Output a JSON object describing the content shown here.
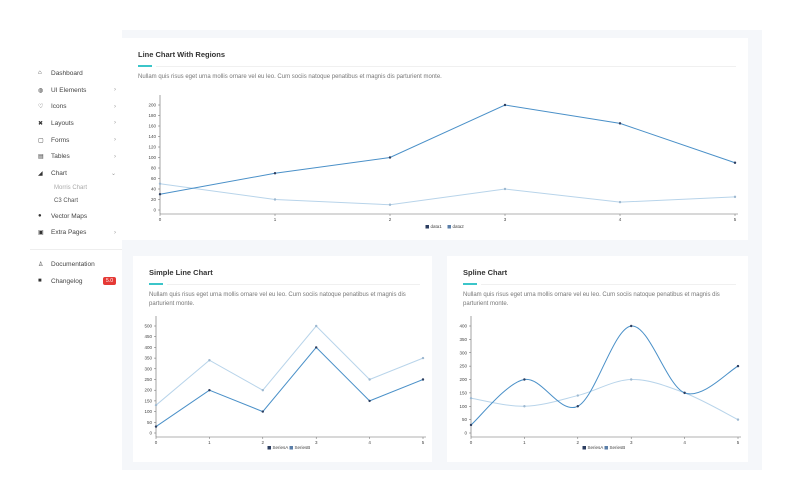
{
  "sidebar": {
    "items": [
      {
        "label": "Dashboard",
        "icon": "home-icon",
        "glyph": "⌂",
        "chev": false
      },
      {
        "label": "UI Elements",
        "icon": "globe-icon",
        "glyph": "◍",
        "chev": true
      },
      {
        "label": "Icons",
        "icon": "heart-icon",
        "glyph": "♡",
        "chev": true
      },
      {
        "label": "Layouts",
        "icon": "layout-icon",
        "glyph": "✖",
        "chev": true
      },
      {
        "label": "Forms",
        "icon": "form-icon",
        "glyph": "▢",
        "chev": true
      },
      {
        "label": "Tables",
        "icon": "table-icon",
        "glyph": "▤",
        "chev": true
      },
      {
        "label": "Chart",
        "icon": "chart-icon",
        "glyph": "◢",
        "chev": true,
        "open": true
      }
    ],
    "chart_sub": [
      "Morris Chart",
      "C3 Chart"
    ],
    "items2": [
      {
        "label": "Vector Maps",
        "icon": "map-pin-icon",
        "glyph": "●"
      },
      {
        "label": "Extra Pages",
        "icon": "pages-icon",
        "glyph": "▣",
        "chev": true
      }
    ],
    "items3": [
      {
        "label": "Documentation",
        "icon": "person-icon",
        "glyph": "♙"
      },
      {
        "label": "Changelog",
        "icon": "book-icon",
        "glyph": "■",
        "badge": "5.0"
      }
    ]
  },
  "desc": "Nullam quis risus eget urna mollis ornare vel eu leo. Cum sociis natoque penatibus et magnis dis parturient monte.",
  "colors": {
    "accent": "#3bc5c9",
    "s1": "#4a90c8",
    "s2": "#b8d4ea"
  },
  "chart_data": [
    {
      "type": "line",
      "title": "Line Chart With Regions",
      "x": [
        0,
        1,
        2,
        3,
        4,
        5
      ],
      "ylim": [
        0,
        200
      ],
      "yticks": [
        0,
        20,
        40,
        60,
        80,
        100,
        120,
        140,
        160,
        180,
        200
      ],
      "series": [
        {
          "name": "data1",
          "values": [
            30,
            70,
            100,
            200,
            165,
            90
          ]
        },
        {
          "name": "data2",
          "values": [
            50,
            20,
            10,
            40,
            15,
            25
          ]
        }
      ]
    },
    {
      "type": "line",
      "title": "Simple Line Chart",
      "x": [
        0,
        1,
        2,
        3,
        4,
        5
      ],
      "ylim": [
        0,
        500
      ],
      "yticks": [
        0,
        50,
        100,
        150,
        200,
        250,
        300,
        350,
        400,
        450,
        500
      ],
      "series": [
        {
          "name": "SeriesA",
          "values": [
            30,
            200,
            100,
            400,
            150,
            250
          ]
        },
        {
          "name": "SeriesB",
          "values": [
            130,
            340,
            200,
            500,
            250,
            350
          ]
        }
      ]
    },
    {
      "type": "line",
      "spline": true,
      "title": "Spline Chart",
      "x": [
        0,
        1,
        2,
        3,
        4,
        5
      ],
      "ylim": [
        0,
        400
      ],
      "yticks": [
        0,
        50,
        100,
        150,
        200,
        250,
        300,
        350,
        400
      ],
      "series": [
        {
          "name": "SeriesA",
          "values": [
            30,
            200,
            100,
            400,
            150,
            250
          ]
        },
        {
          "name": "SeriesB",
          "values": [
            130,
            100,
            140,
            200,
            150,
            50
          ]
        }
      ]
    }
  ]
}
